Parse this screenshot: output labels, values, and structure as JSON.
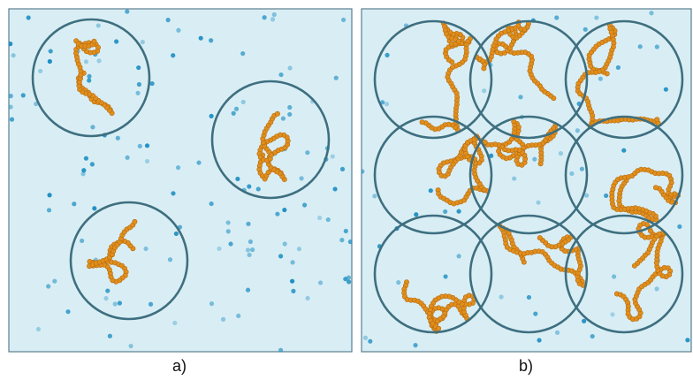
{
  "panels": [
    {
      "label": "a)"
    },
    {
      "label": "b)"
    }
  ]
}
